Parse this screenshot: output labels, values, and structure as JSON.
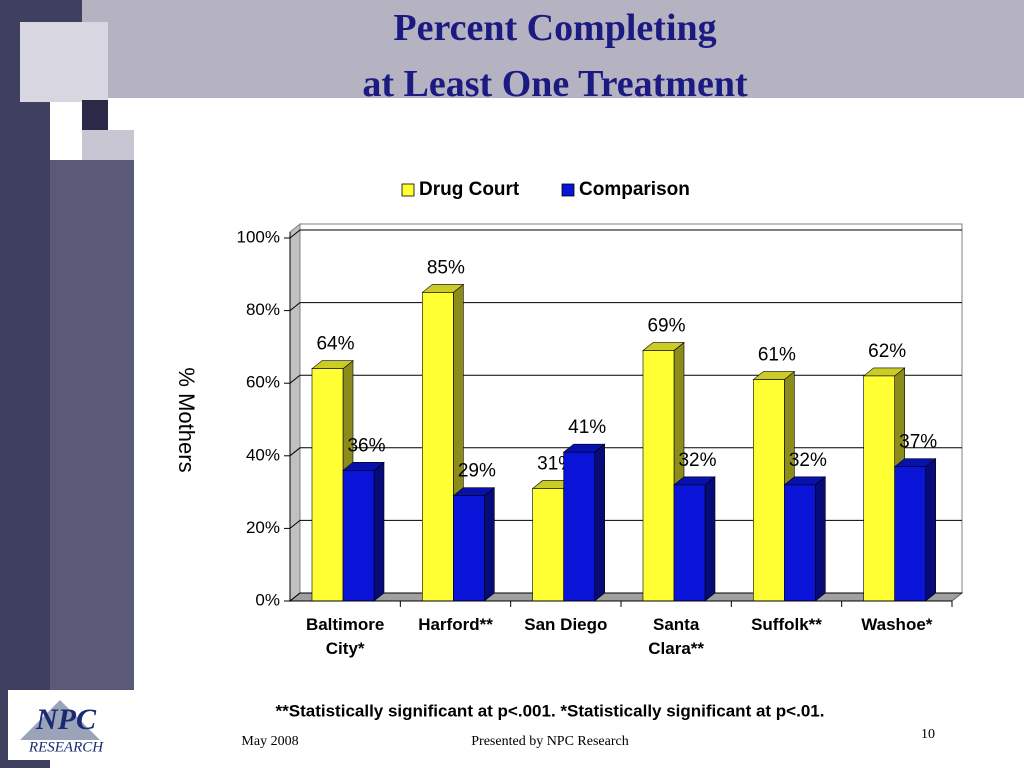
{
  "chart_data": {
    "type": "bar3d",
    "title": [
      "Percent Completing",
      "at Least One Treatment"
    ],
    "y_label": "% Mothers",
    "categories": [
      "Baltimore City*",
      "Harford**",
      "San Diego",
      "Santa Clara**",
      "Suffolk**",
      "Washoe*"
    ],
    "series": [
      {
        "name": "Drug Court",
        "color": "#ffff33",
        "values": [
          64,
          85,
          31,
          69,
          61,
          62
        ],
        "value_labels": [
          "64%",
          "85%",
          "31%",
          "69%",
          "61%",
          "62%"
        ]
      },
      {
        "name": "Comparison",
        "color": "#0a14d8",
        "values": [
          36,
          29,
          41,
          32,
          32,
          37
        ],
        "value_labels": [
          "36%",
          "29%",
          "41%",
          "32%",
          "32%",
          "37%"
        ]
      }
    ],
    "ylim": [
      0,
      100
    ],
    "yticks": [
      {
        "value": 0,
        "label": "0%"
      },
      {
        "value": 20,
        "label": "20%"
      },
      {
        "value": 40,
        "label": "40%"
      },
      {
        "value": 60,
        "label": "60%"
      },
      {
        "value": 80,
        "label": "80%"
      },
      {
        "value": 100,
        "label": "100%"
      }
    ],
    "grid": true,
    "legend": "top"
  },
  "footnote": "**Statistically significant at p<.001.    *Statistically significant at p<.01.",
  "footer": {
    "date": "May 2008",
    "presenter": "Presented by NPC Research",
    "page": "10"
  },
  "logo": {
    "name": "NPC",
    "sub": "RESEARCH"
  }
}
